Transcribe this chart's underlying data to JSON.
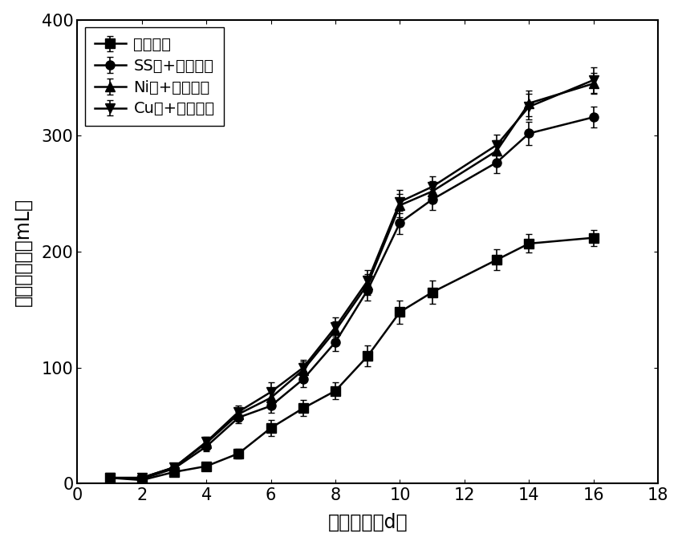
{
  "x": [
    1,
    2,
    3,
    4,
    5,
    6,
    7,
    8,
    9,
    10,
    11,
    13,
    14,
    16
  ],
  "series": {
    "alkali": {
      "label": "碱预处理",
      "marker": "s",
      "y": [
        5,
        3,
        10,
        15,
        26,
        48,
        65,
        80,
        110,
        148,
        165,
        193,
        207,
        212
      ],
      "yerr": [
        2,
        1,
        2,
        3,
        4,
        7,
        7,
        7,
        9,
        10,
        10,
        9,
        8,
        7
      ]
    },
    "ss": {
      "label": "SS网+碱预处理",
      "marker": "o",
      "y": [
        5,
        4,
        13,
        32,
        57,
        67,
        90,
        122,
        167,
        225,
        245,
        277,
        302,
        316
      ],
      "yerr": [
        2,
        1,
        2,
        4,
        5,
        6,
        7,
        8,
        9,
        10,
        9,
        9,
        10,
        9
      ]
    },
    "ni": {
      "label": "Ni网+碱预处理",
      "marker": "^",
      "y": [
        5,
        5,
        14,
        35,
        60,
        74,
        98,
        132,
        172,
        240,
        252,
        287,
        328,
        345
      ],
      "yerr": [
        2,
        1,
        2,
        4,
        5,
        7,
        7,
        8,
        9,
        10,
        9,
        9,
        11,
        9
      ]
    },
    "cu": {
      "label": "Cu网+碱预处理",
      "marker": "v",
      "y": [
        5,
        5,
        14,
        36,
        62,
        79,
        100,
        135,
        175,
        243,
        256,
        292,
        325,
        348
      ],
      "yerr": [
        2,
        1,
        2,
        4,
        5,
        8,
        7,
        8,
        9,
        10,
        9,
        9,
        11,
        11
      ]
    }
  },
  "xlabel": "运行时间（d）",
  "ylabel": "日产甲烷量（mL）",
  "xlim": [
    0,
    18
  ],
  "ylim": [
    0,
    400
  ],
  "xticks": [
    0,
    2,
    4,
    6,
    8,
    10,
    12,
    14,
    16,
    18
  ],
  "yticks": [
    0,
    100,
    200,
    300,
    400
  ],
  "color": "#000000",
  "linewidth": 1.8,
  "markersize": 8,
  "legend_fontsize": 14,
  "axis_label_fontsize": 17,
  "tick_fontsize": 15,
  "capsize": 3,
  "elinewidth": 1.2,
  "background_color": "#ffffff"
}
